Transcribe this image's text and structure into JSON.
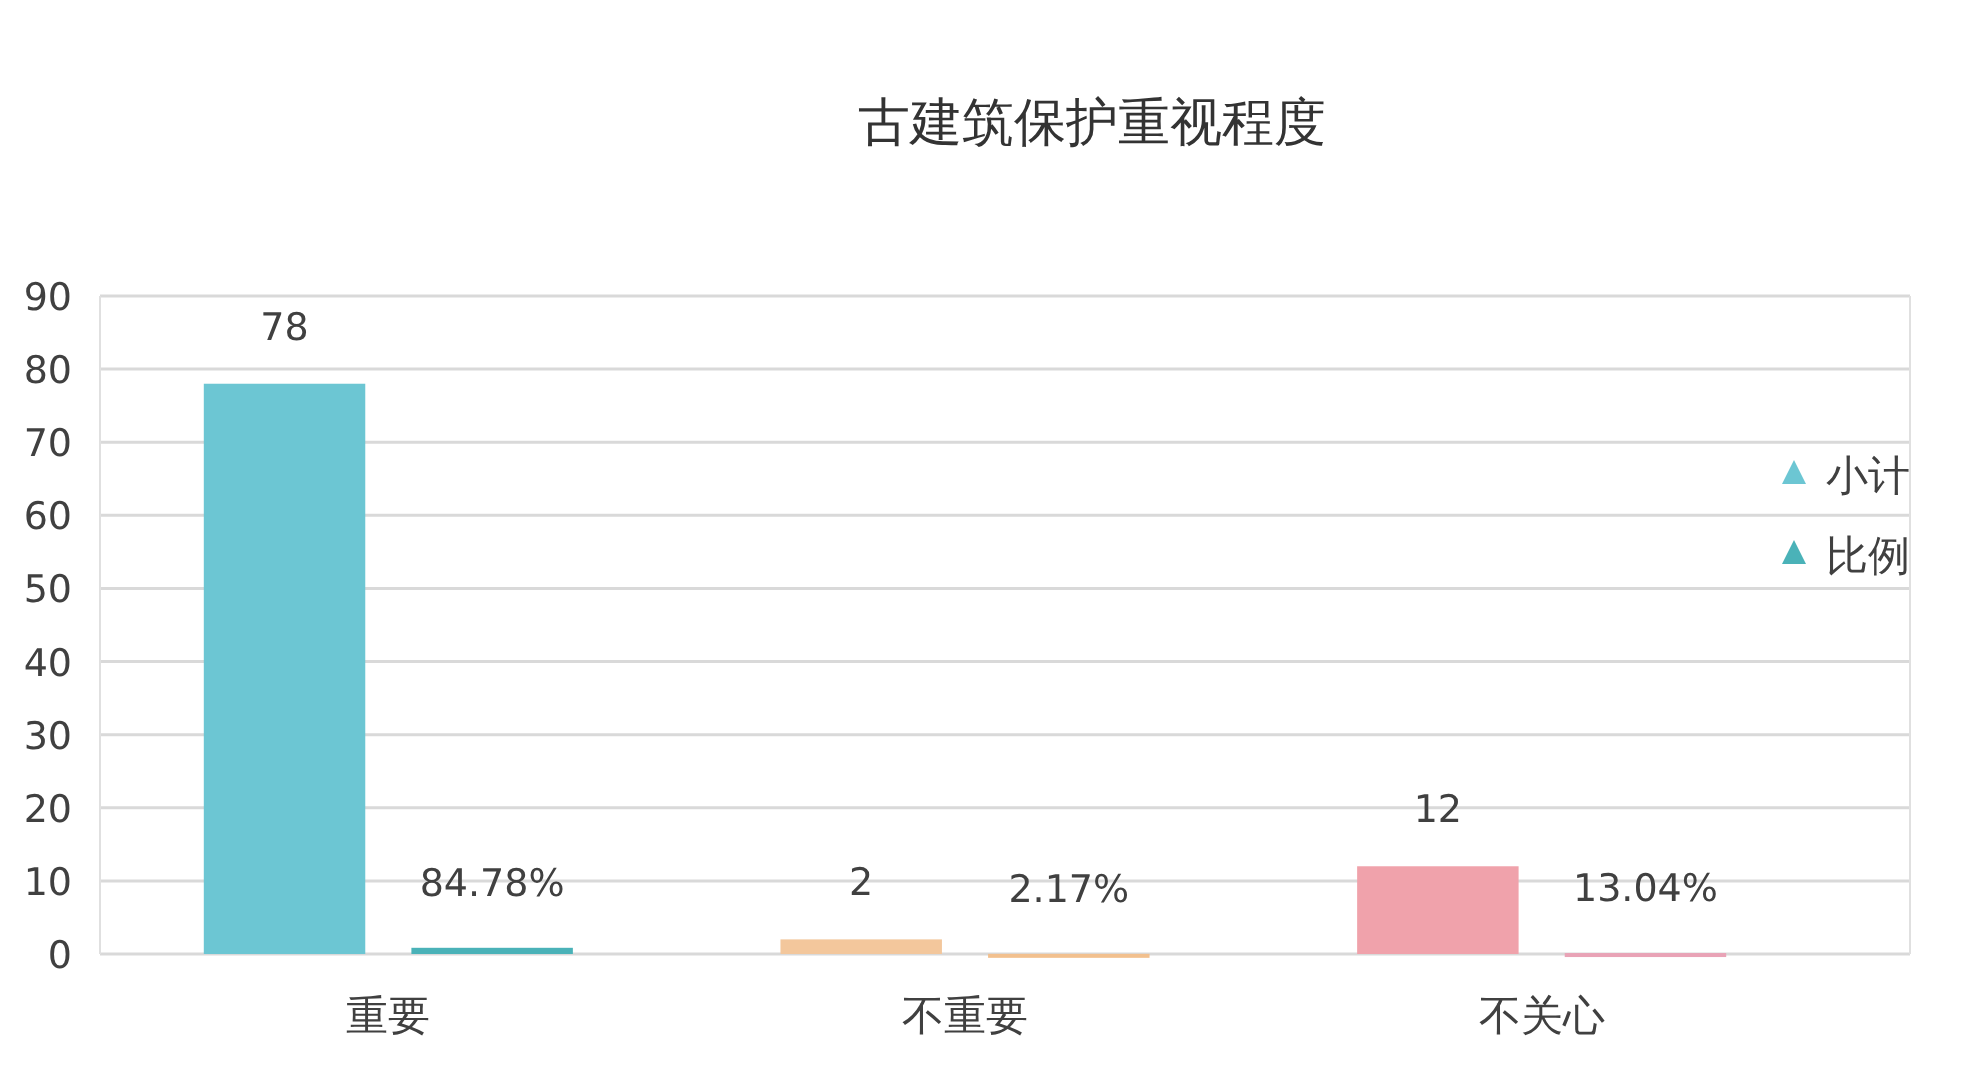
{
  "chart_data": {
    "type": "bar",
    "title": "古建筑保护重视程度",
    "categories": [
      "重要",
      "不重要",
      "不关心"
    ],
    "series": [
      {
        "name": "小计",
        "color": "#6cc6d3",
        "colors": [
          "#6cc6d3",
          "#f3c79c",
          "#f0a2ab"
        ],
        "values": [
          78,
          2,
          12
        ],
        "data_labels": true
      },
      {
        "name": "比例",
        "color": "#4ab2b8",
        "colors": [
          "#4ab2b8",
          "#f2c08e",
          "#e9a3b6"
        ],
        "values": [
          0.8478,
          0.0217,
          0.1304
        ],
        "value_labels": [
          "84.78%",
          "2.17%",
          "13.04%"
        ]
      }
    ],
    "ylim": [
      0,
      90
    ],
    "yticks": [
      0,
      10,
      20,
      30,
      40,
      50,
      60,
      70,
      80,
      90
    ],
    "grid": "y",
    "legend": "right",
    "marker": "triangle"
  }
}
